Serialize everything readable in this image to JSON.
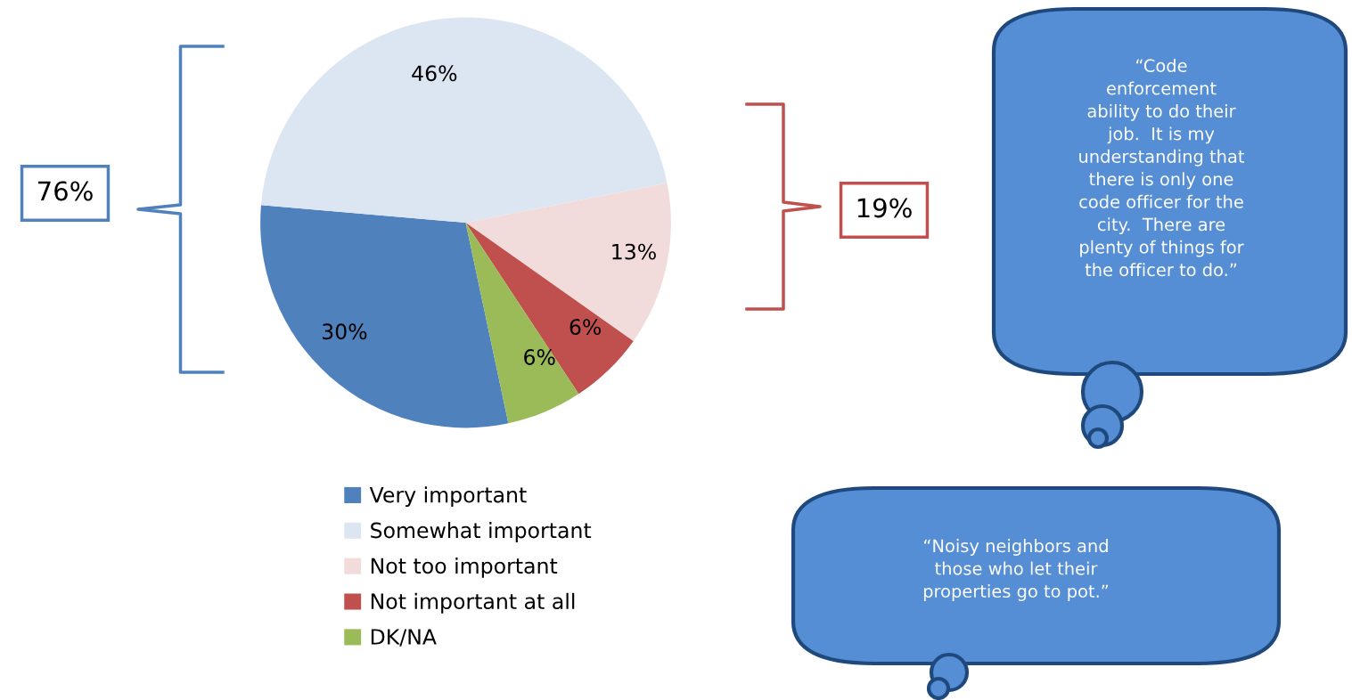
{
  "chart_data": {
    "type": "pie",
    "categories": [
      "Very important",
      "Somewhat important",
      "Not too important",
      "Not important at all",
      "DK/NA"
    ],
    "values": [
      30,
      46,
      13,
      6,
      6
    ],
    "value_labels": [
      "30%",
      "46%",
      "13%",
      "6%",
      "6%"
    ],
    "colors": [
      "#4f81bd",
      "#dce6f2",
      "#f2dcdb",
      "#c0504d",
      "#9bbb59"
    ],
    "legend": "bottom",
    "annotations": [
      "76%",
      "19%",
      "“Code\nenforcement\nability to do their\njob.  It is my\nunderstanding that\nthere is only one\ncode officer for the\ncity.  There are\nplenty of things for\nthe officer to do.”",
      "“Noisy neighbors and\nthose who let their\nproperties go to pot.”"
    ]
  }
}
